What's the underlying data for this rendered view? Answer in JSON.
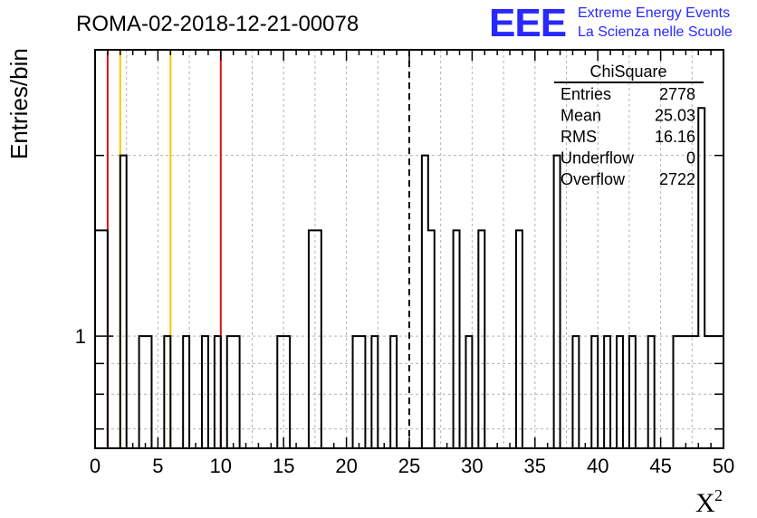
{
  "chart_data": {
    "type": "histogram",
    "title": "ROMA-02-2018-12-21-00078",
    "xlabel": "X",
    "xlabel_superscript": "2",
    "ylabel": "Entries/bin",
    "xlim": [
      0,
      50
    ],
    "ylim_log": [
      0.65,
      3.0
    ],
    "y_scale": "log",
    "grid": true,
    "x_ticks": [
      "0",
      "5",
      "10",
      "15",
      "20",
      "25",
      "30",
      "35",
      "40",
      "45",
      "50"
    ],
    "y_ticks": [
      "1"
    ],
    "bin_width": 0.5,
    "bins": [
      {
        "x": 0.0,
        "y": 1.5
      },
      {
        "x": 0.5,
        "y": 1.5
      },
      {
        "x": 2.0,
        "y": 2.0
      },
      {
        "x": 3.5,
        "y": 1
      },
      {
        "x": 4.0,
        "y": 1
      },
      {
        "x": 5.5,
        "y": 1
      },
      {
        "x": 7.0,
        "y": 1
      },
      {
        "x": 8.5,
        "y": 1
      },
      {
        "x": 9.5,
        "y": 1
      },
      {
        "x": 10.5,
        "y": 1
      },
      {
        "x": 11.0,
        "y": 1
      },
      {
        "x": 14.5,
        "y": 1
      },
      {
        "x": 15.0,
        "y": 1
      },
      {
        "x": 17.0,
        "y": 1.5
      },
      {
        "x": 17.5,
        "y": 1.5
      },
      {
        "x": 20.5,
        "y": 1
      },
      {
        "x": 21.0,
        "y": 1
      },
      {
        "x": 22.0,
        "y": 1
      },
      {
        "x": 23.5,
        "y": 1
      },
      {
        "x": 26.0,
        "y": 2.0
      },
      {
        "x": 26.5,
        "y": 1.5
      },
      {
        "x": 28.5,
        "y": 1.5
      },
      {
        "x": 29.5,
        "y": 1
      },
      {
        "x": 30.5,
        "y": 1.5
      },
      {
        "x": 33.5,
        "y": 1.5
      },
      {
        "x": 36.5,
        "y": 2.0
      },
      {
        "x": 38.0,
        "y": 1
      },
      {
        "x": 39.5,
        "y": 1
      },
      {
        "x": 40.5,
        "y": 1
      },
      {
        "x": 41.5,
        "y": 1
      },
      {
        "x": 42.5,
        "y": 1
      },
      {
        "x": 44.0,
        "y": 1
      },
      {
        "x": 46.0,
        "y": 1
      },
      {
        "x": 46.5,
        "y": 1
      },
      {
        "x": 47.0,
        "y": 1
      },
      {
        "x": 47.5,
        "y": 1
      },
      {
        "x": 48.0,
        "y": 2.4
      },
      {
        "x": 48.5,
        "y": 1
      },
      {
        "x": 49.0,
        "y": 1
      },
      {
        "x": 49.5,
        "y": 1
      }
    ],
    "vertical_lines": [
      {
        "x": 1,
        "color": "#dd1111",
        "style": "solid"
      },
      {
        "x": 2,
        "color": "#ffc300",
        "style": "solid"
      },
      {
        "x": 6,
        "color": "#ffc300",
        "style": "solid"
      },
      {
        "x": 10,
        "color": "#dd1111",
        "style": "solid"
      },
      {
        "x": 25,
        "color": "#000000",
        "style": "dashed"
      }
    ],
    "stats_box": {
      "title": "ChiSquare",
      "rows": [
        {
          "label": "Entries",
          "value": "2778"
        },
        {
          "label": "Mean",
          "value": "25.03"
        },
        {
          "label": "RMS",
          "value": "16.16"
        },
        {
          "label": "Underflow",
          "value": "0"
        },
        {
          "label": "Overflow",
          "value": "2722"
        }
      ]
    },
    "logo": {
      "mark": "EEE",
      "line1": "Extreme Energy Events",
      "line2": "La Scienza nelle Scuole",
      "color": "#2828ff"
    }
  }
}
